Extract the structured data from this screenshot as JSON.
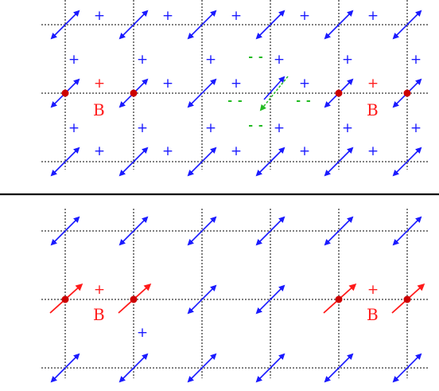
{
  "labels": {
    "top_left_b": "B",
    "top_right_b": "B",
    "bottom_left_b": "B",
    "bottom_right_b": "B"
  },
  "symbols": {
    "plus": "+",
    "minus": "- -"
  },
  "colors": {
    "grid": "#000000",
    "spin_blue": "#1a1aff",
    "spin_red": "#ff1a1a",
    "defect_green": "#22bb22",
    "dot_red": "#cc0000"
  },
  "icons": {
    "spin": "double-headed-arrow",
    "site": "red-dot"
  }
}
